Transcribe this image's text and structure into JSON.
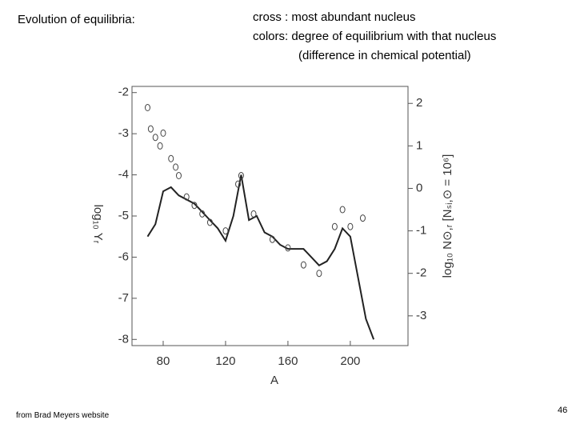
{
  "slide": {
    "title": "Evolution of equilibria:",
    "notes": [
      "cross : most abundant nucleus",
      "colors: degree of equilibrium with that nucleus",
      "(difference in chemical potential)"
    ],
    "source": "from Brad Meyers website",
    "page_number": "46"
  },
  "chart_data": {
    "type": "line",
    "x_label": "A",
    "y_label": "log₁₀ Yᵣ",
    "y2_label": "log₁₀ N⊙,ᵣ  [Nₛᵢ,⊙ = 10⁶]",
    "xlim": [
      60,
      237
    ],
    "xticks": [
      80,
      120,
      160,
      200
    ],
    "ylim": [
      -8.15,
      -1.85
    ],
    "yticks": [
      -2,
      -3,
      -4,
      -5,
      -6,
      -7,
      -8
    ],
    "y2lim": [
      -3.7,
      2.4
    ],
    "y2ticks": [
      2,
      1,
      0,
      -1,
      -2,
      -3
    ],
    "series": [
      {
        "color": "#222222",
        "marker": "none",
        "x": [
          70,
          75,
          80,
          85,
          90,
          95,
          100,
          105,
          110,
          115,
          120,
          125,
          130,
          135,
          140,
          145,
          150,
          155,
          160,
          165,
          170,
          175,
          180,
          185,
          190,
          195,
          200,
          205,
          210,
          215
        ],
        "values": [
          -5.5,
          -5.2,
          -4.4,
          -4.3,
          -4.5,
          -4.6,
          -4.7,
          -4.9,
          -5.1,
          -5.3,
          -5.6,
          -5.0,
          -4.0,
          -5.1,
          -5.0,
          -5.4,
          -5.5,
          -5.7,
          -5.8,
          -5.8,
          -5.8,
          -6.0,
          -6.2,
          -6.1,
          -5.8,
          -5.3,
          -5.5,
          -6.5,
          -7.5,
          -8.0
        ]
      },
      {
        "color": "#444444",
        "marker": "circle",
        "axis": "y2",
        "x": [
          70,
          72,
          75,
          78,
          80,
          85,
          88,
          90,
          95,
          100,
          105,
          110,
          120,
          128,
          130,
          138,
          150,
          160,
          170,
          180,
          190,
          195,
          200,
          208
        ],
        "values": [
          1.9,
          1.4,
          1.2,
          1.0,
          1.3,
          0.7,
          0.5,
          0.3,
          -0.2,
          -0.4,
          -0.6,
          -0.8,
          -1.0,
          0.1,
          0.3,
          -0.6,
          -1.2,
          -1.4,
          -1.8,
          -2.0,
          -0.9,
          -0.5,
          -0.9,
          -0.7
        ]
      }
    ]
  }
}
